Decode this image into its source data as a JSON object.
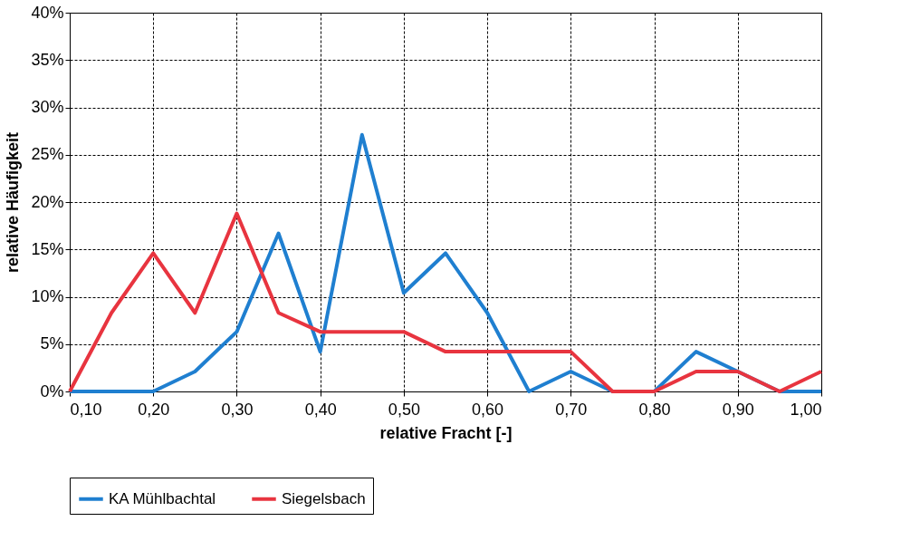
{
  "chart_data": {
    "type": "line",
    "xlabel": "relative Fracht [-]",
    "ylabel": "relative Häufigkeit",
    "x": [
      0.1,
      0.15,
      0.2,
      0.25,
      0.3,
      0.35,
      0.4,
      0.45,
      0.5,
      0.55,
      0.6,
      0.65,
      0.7,
      0.75,
      0.8,
      0.85,
      0.9,
      0.95,
      1.0
    ],
    "series": [
      {
        "name": "KA Mühlbachtal",
        "color": "#1f7fd0",
        "values": [
          0,
          0,
          0,
          2.1,
          6.3,
          16.7,
          4.2,
          27.1,
          10.4,
          14.6,
          8.3,
          0,
          2.1,
          0,
          0,
          4.2,
          2.1,
          0,
          0
        ]
      },
      {
        "name": "Siegelsbach",
        "color": "#e8343f",
        "values": [
          0,
          8.3,
          14.6,
          8.3,
          18.8,
          8.3,
          6.3,
          6.3,
          6.3,
          4.2,
          4.2,
          4.2,
          4.2,
          0,
          0,
          2.1,
          2.1,
          0,
          2.1
        ]
      }
    ],
    "xlim": [
      0.1,
      1.0
    ],
    "xticks": [
      {
        "value": 0.1,
        "label": "0,10"
      },
      {
        "value": 0.2,
        "label": "0,20"
      },
      {
        "value": 0.3,
        "label": "0,30"
      },
      {
        "value": 0.4,
        "label": "0,40"
      },
      {
        "value": 0.5,
        "label": "0,50"
      },
      {
        "value": 0.6,
        "label": "0,60"
      },
      {
        "value": 0.7,
        "label": "0,70"
      },
      {
        "value": 0.8,
        "label": "0,80"
      },
      {
        "value": 0.9,
        "label": "0,90"
      },
      {
        "value": 1.0,
        "label": "1,00"
      }
    ],
    "ylim": [
      0,
      40
    ],
    "yticks": [
      {
        "value": 0,
        "label": "0%"
      },
      {
        "value": 5,
        "label": "5%"
      },
      {
        "value": 10,
        "label": "10%"
      },
      {
        "value": 15,
        "label": "15%"
      },
      {
        "value": 20,
        "label": "20%"
      },
      {
        "value": 25,
        "label": "25%"
      },
      {
        "value": 30,
        "label": "30%"
      },
      {
        "value": 35,
        "label": "35%"
      },
      {
        "value": 40,
        "label": "40%"
      }
    ],
    "grid": true,
    "legend": "bottom",
    "marker": "none",
    "line_style": "solid"
  }
}
